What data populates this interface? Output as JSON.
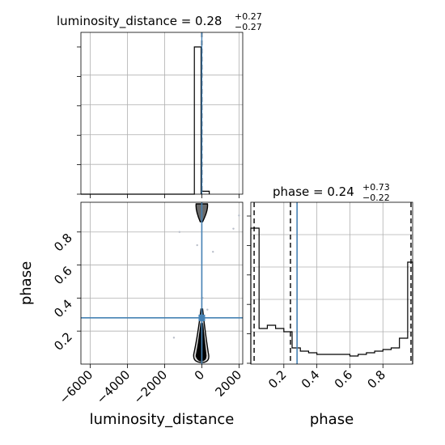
{
  "chart_data": [
    {
      "id": "hist-luminosity-distance",
      "type": "histogram",
      "parameter": "luminosity_distance",
      "title": {
        "main": "luminosity_distance = 0.28",
        "sup": "+0.27",
        "sub": "−0.27"
      },
      "xlim": [
        -6500,
        2200
      ],
      "bins": [
        {
          "x0": -400,
          "x1": -40,
          "count": 1.0
        },
        {
          "x0": -40,
          "x1": 400,
          "count": 0.02
        }
      ],
      "median": 0.28,
      "quantiles": [
        0.01,
        0.55
      ],
      "truth": 0.28,
      "grid": true
    },
    {
      "id": "hist-phase",
      "type": "histogram",
      "parameter": "phase",
      "title": {
        "main": "phase = 0.24",
        "sup": "+0.73",
        "sub": "−0.22"
      },
      "xlim": [
        0.0,
        0.98
      ],
      "xticks": [
        "0.2",
        "0.4",
        "0.6",
        "0.8"
      ],
      "xtick_values": [
        0.2,
        0.4,
        0.6,
        0.8
      ],
      "xlabel": "phase",
      "bins": [
        {
          "x0": 0.0,
          "x1": 0.05,
          "count": 0.84
        },
        {
          "x0": 0.05,
          "x1": 0.1,
          "count": 0.22
        },
        {
          "x0": 0.1,
          "x1": 0.15,
          "count": 0.24
        },
        {
          "x0": 0.15,
          "x1": 0.2,
          "count": 0.22
        },
        {
          "x0": 0.2,
          "x1": 0.25,
          "count": 0.2
        },
        {
          "x0": 0.25,
          "x1": 0.3,
          "count": 0.1
        },
        {
          "x0": 0.3,
          "x1": 0.35,
          "count": 0.08
        },
        {
          "x0": 0.35,
          "x1": 0.4,
          "count": 0.07
        },
        {
          "x0": 0.4,
          "x1": 0.45,
          "count": 0.06
        },
        {
          "x0": 0.45,
          "x1": 0.5,
          "count": 0.06
        },
        {
          "x0": 0.5,
          "x1": 0.55,
          "count": 0.06
        },
        {
          "x0": 0.55,
          "x1": 0.6,
          "count": 0.06
        },
        {
          "x0": 0.6,
          "x1": 0.65,
          "count": 0.05
        },
        {
          "x0": 0.65,
          "x1": 0.7,
          "count": 0.06
        },
        {
          "x0": 0.7,
          "x1": 0.75,
          "count": 0.07
        },
        {
          "x0": 0.75,
          "x1": 0.8,
          "count": 0.08
        },
        {
          "x0": 0.8,
          "x1": 0.85,
          "count": 0.09
        },
        {
          "x0": 0.85,
          "x1": 0.9,
          "count": 0.1
        },
        {
          "x0": 0.9,
          "x1": 0.95,
          "count": 0.16
        },
        {
          "x0": 0.95,
          "x1": 0.98,
          "count": 0.63
        }
      ],
      "quantiles": [
        0.02,
        0.24,
        0.97
      ],
      "truth": 0.28,
      "grid": true
    },
    {
      "id": "contour-luminosity-distance-vs-phase",
      "type": "scatter",
      "xlabel": "luminosity_distance",
      "ylabel": "phase",
      "xlim": [
        -6500,
        2200
      ],
      "ylim": [
        0.0,
        0.98
      ],
      "xticks": [
        "−6000",
        "−4000",
        "−2000",
        "0",
        "2000"
      ],
      "xtick_values": [
        -6000,
        -4000,
        -2000,
        0,
        2000
      ],
      "yticks": [
        "0.2",
        "0.4",
        "0.6",
        "0.8"
      ],
      "ytick_values": [
        0.2,
        0.4,
        0.6,
        0.8
      ],
      "truth": {
        "x": 0.28,
        "y": 0.28
      },
      "points": [
        {
          "x": -1500,
          "y": 0.16
        },
        {
          "x": -1200,
          "y": 0.8
        },
        {
          "x": -250,
          "y": 0.72
        },
        {
          "x": 50,
          "y": 0.4
        },
        {
          "x": 300,
          "y": 0.33
        },
        {
          "x": 600,
          "y": 0.68
        },
        {
          "x": 1700,
          "y": 0.82
        },
        {
          "x": 2000,
          "y": 0.9
        },
        {
          "x": -80,
          "y": 0.95
        },
        {
          "x": 80,
          "y": 0.06
        }
      ],
      "grid": true
    }
  ],
  "colors": {
    "truth": "#4682b4",
    "hist": "#000000",
    "quantile": "#000000",
    "contour_fill": "#6a6a6a",
    "points": "#b8bec9",
    "grid": "#b0b0b0"
  }
}
